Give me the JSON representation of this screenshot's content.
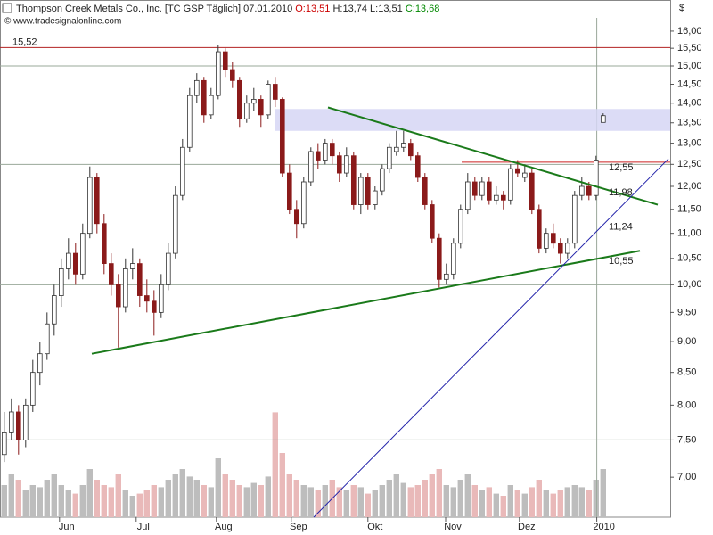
{
  "chart_data": {
    "type": "candlestick",
    "title": "Thompson Creek Metals Co., Inc. [TC GSP  Täglich] 07.01.2010",
    "quote": {
      "open": "O:13,51",
      "high": "H:13,74",
      "low": "L:13,51",
      "close": "C:13,68"
    },
    "source": "© www.tradesignalonline.com",
    "y_unit": "$",
    "log_scale": true,
    "ylim": [
      6.5,
      16.4
    ],
    "xlim": [
      -0.6,
      93.4
    ],
    "yticks": [
      {
        "value": 7.0,
        "label": "7,00"
      },
      {
        "value": 7.5,
        "label": "7,50"
      },
      {
        "value": 8.0,
        "label": "8,00"
      },
      {
        "value": 8.5,
        "label": "8,50"
      },
      {
        "value": 9.0,
        "label": "9,00"
      },
      {
        "value": 9.5,
        "label": "9,50"
      },
      {
        "value": 10.0,
        "label": "10,00"
      },
      {
        "value": 10.5,
        "label": "10,50"
      },
      {
        "value": 11.0,
        "label": "11,00"
      },
      {
        "value": 11.5,
        "label": "11,50"
      },
      {
        "value": 12.0,
        "label": "12,00"
      },
      {
        "value": 12.5,
        "label": "12,50"
      },
      {
        "value": 13.0,
        "label": "13,00"
      },
      {
        "value": 13.5,
        "label": "13,50"
      },
      {
        "value": 14.0,
        "label": "14,00"
      },
      {
        "value": 14.5,
        "label": "14,50"
      },
      {
        "value": 15.0,
        "label": "15,00"
      },
      {
        "value": 15.5,
        "label": "15,50"
      },
      {
        "value": 16.0,
        "label": "16,00"
      }
    ],
    "ygrid": [
      7.5,
      10.0,
      12.5,
      15.0
    ],
    "xticks": [
      {
        "value": 7.75,
        "label": "Jun"
      },
      {
        "value": 18.5,
        "label": "Jul"
      },
      {
        "value": 29.75,
        "label": "Aug"
      },
      {
        "value": 40.25,
        "label": "Sep"
      },
      {
        "value": 51,
        "label": "Okt"
      },
      {
        "value": 61.9,
        "label": "Nov"
      },
      {
        "value": 72.25,
        "label": "Dez"
      },
      {
        "value": 83.1,
        "label": "2010"
      }
    ],
    "xgrid": [
      83.1
    ],
    "up_color": "#ffffff",
    "down_color": "#8b1a1a",
    "ohlc": [
      [
        7.3,
        7.9,
        7.2,
        7.6
      ],
      [
        7.6,
        8.1,
        7.5,
        7.9
      ],
      [
        7.9,
        8.0,
        7.3,
        7.5
      ],
      [
        7.5,
        8.1,
        7.4,
        8.0
      ],
      [
        8.0,
        8.7,
        7.9,
        8.5
      ],
      [
        8.5,
        9.0,
        8.3,
        8.8
      ],
      [
        8.8,
        9.5,
        8.7,
        9.3
      ],
      [
        9.3,
        10.0,
        9.1,
        9.8
      ],
      [
        9.8,
        10.5,
        9.6,
        10.3
      ],
      [
        10.3,
        10.9,
        10.1,
        10.6
      ],
      [
        10.6,
        10.8,
        10.0,
        10.2
      ],
      [
        10.2,
        11.2,
        10.1,
        11.0
      ],
      [
        11.0,
        12.45,
        10.9,
        12.2
      ],
      [
        12.2,
        12.3,
        11.0,
        11.2
      ],
      [
        11.2,
        11.4,
        10.2,
        10.4
      ],
      [
        10.4,
        10.6,
        9.8,
        10.0
      ],
      [
        10.0,
        10.2,
        8.9,
        9.6
      ],
      [
        9.6,
        10.5,
        9.5,
        10.3
      ],
      [
        10.3,
        10.7,
        10.1,
        10.4
      ],
      [
        10.4,
        10.5,
        9.6,
        9.8
      ],
      [
        9.8,
        10.1,
        9.5,
        9.7
      ],
      [
        9.7,
        9.9,
        9.1,
        9.5
      ],
      [
        9.5,
        10.2,
        9.4,
        10.0
      ],
      [
        10.0,
        10.8,
        9.9,
        10.6
      ],
      [
        10.6,
        12.0,
        10.5,
        11.8
      ],
      [
        11.8,
        13.1,
        11.7,
        12.9
      ],
      [
        12.9,
        14.4,
        12.8,
        14.2
      ],
      [
        14.2,
        14.8,
        14.0,
        14.6
      ],
      [
        14.6,
        14.7,
        13.5,
        13.7
      ],
      [
        13.7,
        14.4,
        13.6,
        14.2
      ],
      [
        14.2,
        15.6,
        14.1,
        15.4
      ],
      [
        15.4,
        15.5,
        14.7,
        14.9
      ],
      [
        14.9,
        15.1,
        14.4,
        14.6
      ],
      [
        14.6,
        14.7,
        13.4,
        13.6
      ],
      [
        13.6,
        14.2,
        13.5,
        14.0
      ],
      [
        14.0,
        14.4,
        13.8,
        14.1
      ],
      [
        14.1,
        14.2,
        13.4,
        13.7
      ],
      [
        13.7,
        14.6,
        13.6,
        14.5
      ],
      [
        14.5,
        14.7,
        13.9,
        14.1
      ],
      [
        14.1,
        14.15,
        12.2,
        12.3
      ],
      [
        12.3,
        12.5,
        11.4,
        11.5
      ],
      [
        11.5,
        11.7,
        10.9,
        11.2
      ],
      [
        11.2,
        12.2,
        11.1,
        12.1
      ],
      [
        12.1,
        12.9,
        12.0,
        12.8
      ],
      [
        12.8,
        13.0,
        12.4,
        12.6
      ],
      [
        12.6,
        13.1,
        12.5,
        13.0
      ],
      [
        13.0,
        13.1,
        12.5,
        12.7
      ],
      [
        12.7,
        12.8,
        12.1,
        12.3
      ],
      [
        12.3,
        12.9,
        12.2,
        12.7
      ],
      [
        12.7,
        12.8,
        11.5,
        11.6
      ],
      [
        11.6,
        12.3,
        11.4,
        12.2
      ],
      [
        12.2,
        12.3,
        11.5,
        11.6
      ],
      [
        11.6,
        12.0,
        11.5,
        11.9
      ],
      [
        11.9,
        12.5,
        11.8,
        12.4
      ],
      [
        12.4,
        13.0,
        12.3,
        12.9
      ],
      [
        12.8,
        13.3,
        12.7,
        12.9
      ],
      [
        12.9,
        13.3,
        12.8,
        13.0
      ],
      [
        13.0,
        13.1,
        12.6,
        12.7
      ],
      [
        12.7,
        12.8,
        12.1,
        12.2
      ],
      [
        12.2,
        12.3,
        11.5,
        11.6
      ],
      [
        11.6,
        11.7,
        10.8,
        10.9
      ],
      [
        10.9,
        11.0,
        9.95,
        10.1
      ],
      [
        10.1,
        10.4,
        10.0,
        10.2
      ],
      [
        10.2,
        10.9,
        10.1,
        10.8
      ],
      [
        10.8,
        11.6,
        10.7,
        11.5
      ],
      [
        11.5,
        12.3,
        11.4,
        12.1
      ],
      [
        12.1,
        12.2,
        11.7,
        11.8
      ],
      [
        11.8,
        12.2,
        11.7,
        12.1
      ],
      [
        12.1,
        12.2,
        11.6,
        11.7
      ],
      [
        11.7,
        12.0,
        11.6,
        11.8
      ],
      [
        11.8,
        11.9,
        11.5,
        11.7
      ],
      [
        11.7,
        12.5,
        11.6,
        12.4
      ],
      [
        12.4,
        12.6,
        12.2,
        12.3
      ],
      [
        12.2,
        12.5,
        12.1,
        12.3
      ],
      [
        12.3,
        12.4,
        11.4,
        11.5
      ],
      [
        11.5,
        11.6,
        10.6,
        10.7
      ],
      [
        10.7,
        11.1,
        10.6,
        11.0
      ],
      [
        11.0,
        11.2,
        10.7,
        10.8
      ],
      [
        10.8,
        10.9,
        10.4,
        10.6
      ],
      [
        10.6,
        10.9,
        10.5,
        10.8
      ],
      [
        10.8,
        11.9,
        10.7,
        11.8
      ],
      [
        11.8,
        12.2,
        11.7,
        12.0
      ],
      [
        12.0,
        12.1,
        11.7,
        11.8
      ],
      [
        11.8,
        12.7,
        11.7,
        12.6
      ],
      [
        13.51,
        13.74,
        13.51,
        13.68
      ]
    ],
    "volume": [
      30,
      40,
      35,
      25,
      30,
      28,
      35,
      40,
      30,
      25,
      22,
      30,
      45,
      35,
      30,
      28,
      40,
      25,
      20,
      22,
      25,
      30,
      28,
      35,
      40,
      45,
      38,
      35,
      30,
      28,
      55,
      40,
      35,
      30,
      28,
      32,
      30,
      38,
      98,
      60,
      40,
      35,
      30,
      28,
      25,
      30,
      35,
      28,
      25,
      30,
      28,
      22,
      25,
      30,
      35,
      40,
      32,
      28,
      30,
      35,
      40,
      45,
      30,
      28,
      35,
      40,
      30,
      25,
      28,
      22,
      20,
      30,
      25,
      22,
      28,
      35,
      25,
      22,
      25,
      28,
      30,
      28,
      25,
      35,
      45
    ],
    "vlim": [
      0,
      100
    ],
    "volume_up_color": "#bdbdbd",
    "volume_down_color": "#e9b9b9",
    "zone": {
      "from": 13.3,
      "to": 13.85,
      "start": 37.9,
      "color": "#d6d6f5"
    },
    "levels": [
      {
        "value": 15.52,
        "label": "15,52",
        "color": "#b22222",
        "start": -0.6
      },
      {
        "value": 12.55,
        "label": "12,55",
        "color": "#cc2222",
        "start": 64.15
      }
    ],
    "trendlines": [
      {
        "start": [
          12.275,
          8.8
        ],
        "end": [
          89.15,
          10.65
        ],
        "color": "#1a7a1a",
        "width": 2,
        "value": 10.55,
        "label": "10,55"
      },
      {
        "start": [
          45.4,
          13.89
        ],
        "end": [
          91.65,
          11.6
        ],
        "color": "#1a7a1a",
        "width": 2,
        "value": 11.98,
        "label": "11,98"
      },
      {
        "start": [
          43.4,
          6.5
        ],
        "end": [
          93.15,
          12.63
        ],
        "color": "#2222aa",
        "width": 1,
        "value": 11.24,
        "label": "11,24"
      }
    ]
  }
}
